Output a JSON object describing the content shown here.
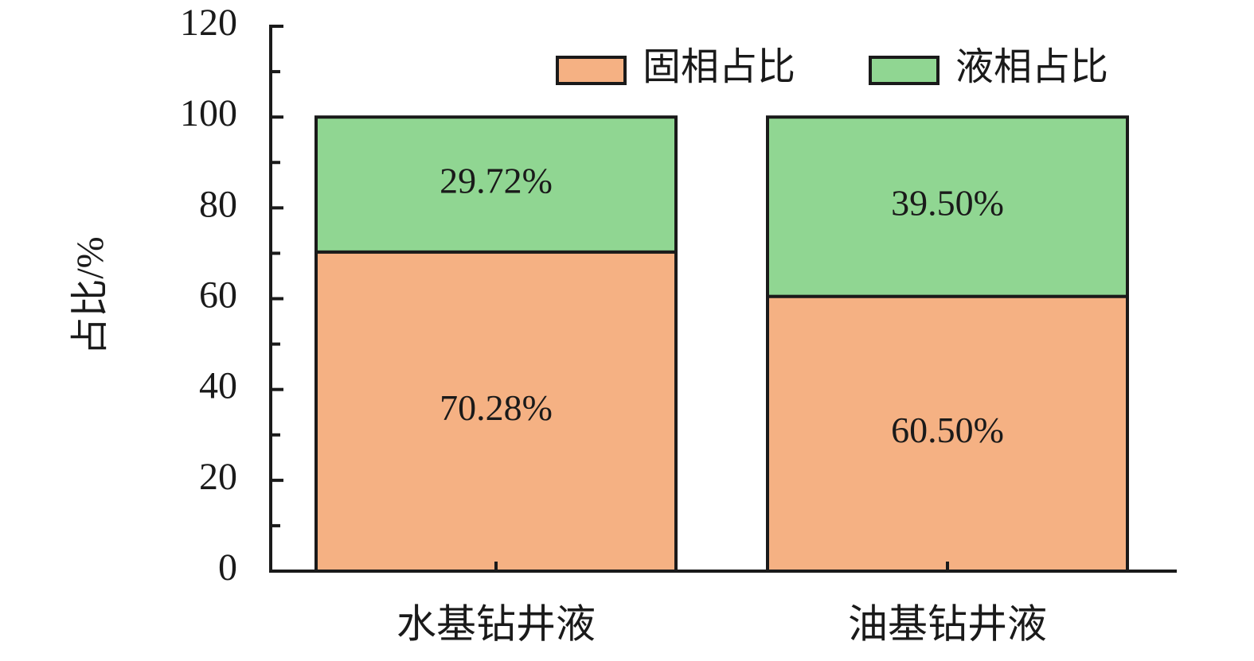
{
  "chart_data": {
    "type": "stacked_bar",
    "y_label": "占比/%",
    "categories": [
      "水基钻井液",
      "油基钻井液"
    ],
    "series": [
      {
        "name": "固相占比",
        "color": "#f5b183",
        "values": [
          70.28,
          60.5
        ],
        "value_labels": [
          "70.28%",
          "60.50%"
        ]
      },
      {
        "name": "液相占比",
        "color": "#90d692",
        "values": [
          29.72,
          39.5
        ],
        "value_labels": [
          "29.72%",
          "39.50%"
        ]
      }
    ],
    "ylim": [
      0,
      120
    ],
    "yticks": [
      0,
      20,
      40,
      60,
      80,
      100,
      120
    ],
    "legend": "upper right"
  }
}
